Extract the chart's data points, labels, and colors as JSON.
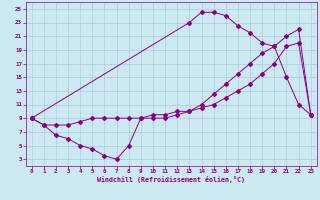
{
  "xlabel": "Windchill (Refroidissement éolien,°C)",
  "bg_color": "#cce8f0",
  "line_color": "#880088",
  "grid_color": "#aaccdd",
  "xlim": [
    -0.5,
    23.5
  ],
  "ylim": [
    2,
    26
  ],
  "xticks": [
    0,
    1,
    2,
    3,
    4,
    5,
    6,
    7,
    8,
    9,
    10,
    11,
    12,
    13,
    14,
    15,
    16,
    17,
    18,
    19,
    20,
    21,
    22,
    23
  ],
  "yticks": [
    3,
    5,
    7,
    9,
    11,
    13,
    15,
    17,
    19,
    21,
    23,
    25
  ],
  "series": [
    {
      "x": [
        0,
        1,
        2,
        3,
        4,
        5,
        6,
        7,
        8,
        9,
        10,
        11,
        12,
        13,
        14,
        15,
        16,
        17,
        18,
        19,
        20,
        21,
        22,
        23
      ],
      "y": [
        9,
        8,
        6.5,
        6,
        5,
        4.5,
        3.5,
        3,
        5,
        9,
        9,
        9,
        9.5,
        10,
        11,
        12.5,
        14,
        15.5,
        17,
        18.5,
        19.5,
        21,
        22,
        9.5
      ]
    },
    {
      "x": [
        0,
        1,
        2,
        3,
        4,
        5,
        6,
        7,
        8,
        9,
        10,
        11,
        12,
        13,
        14,
        15,
        16,
        17,
        18,
        19,
        20,
        21,
        22,
        23
      ],
      "y": [
        9,
        8,
        8,
        8,
        8.5,
        9,
        9,
        9,
        9,
        9,
        9.5,
        9.5,
        10,
        10,
        10.5,
        11,
        12,
        13,
        14,
        15.5,
        17,
        19.5,
        20,
        9.5
      ]
    },
    {
      "x": [
        0,
        13,
        14,
        15,
        16,
        17,
        18,
        19,
        20,
        21,
        22,
        23
      ],
      "y": [
        9,
        23,
        24.5,
        24.5,
        24,
        22.5,
        21.5,
        20,
        19.5,
        15,
        11,
        9.5
      ]
    }
  ]
}
